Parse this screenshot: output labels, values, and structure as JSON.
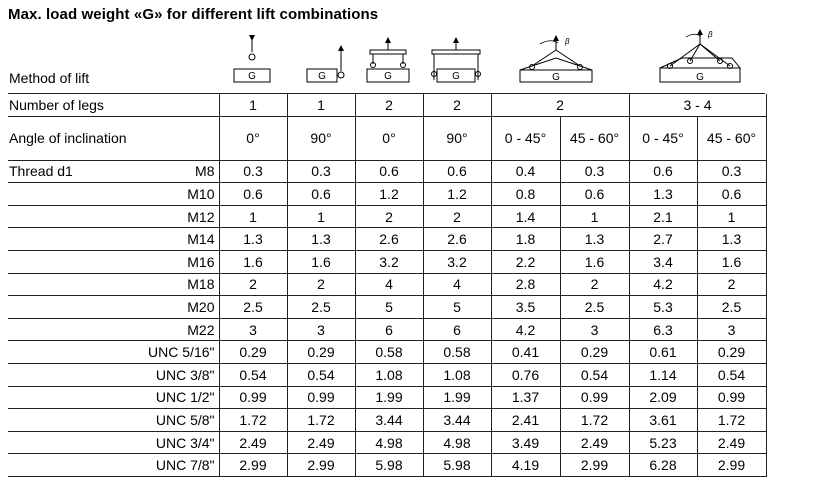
{
  "title": "Max. load weight «G» for different lift combinations",
  "method_of_lift_label": "Method of lift",
  "number_of_legs_label": "Number of legs",
  "angle_label": "Angle of inclination",
  "thread_label": "Thread d1",
  "diagram_letter": "G",
  "angle_symbol": "β",
  "legs": [
    "1",
    "1",
    "2",
    "2",
    "2",
    "3 - 4"
  ],
  "angles": [
    "0°",
    "90°",
    "0°",
    "90°",
    "0 - 45°",
    "45 - 60°",
    "0 - 45°",
    "45 - 60°"
  ],
  "rows": [
    {
      "thread": "M8",
      "values": [
        "0.3",
        "0.3",
        "0.6",
        "0.6",
        "0.4",
        "0.3",
        "0.6",
        "0.3"
      ]
    },
    {
      "thread": "M10",
      "values": [
        "0.6",
        "0.6",
        "1.2",
        "1.2",
        "0.8",
        "0.6",
        "1.3",
        "0.6"
      ]
    },
    {
      "thread": "M12",
      "values": [
        "1",
        "1",
        "2",
        "2",
        "1.4",
        "1",
        "2.1",
        "1"
      ]
    },
    {
      "thread": "M14",
      "values": [
        "1.3",
        "1.3",
        "2.6",
        "2.6",
        "1.8",
        "1.3",
        "2.7",
        "1.3"
      ]
    },
    {
      "thread": "M16",
      "values": [
        "1.6",
        "1.6",
        "3.2",
        "3.2",
        "2.2",
        "1.6",
        "3.4",
        "1.6"
      ]
    },
    {
      "thread": "M18",
      "values": [
        "2",
        "2",
        "4",
        "4",
        "2.8",
        "2",
        "4.2",
        "2"
      ]
    },
    {
      "thread": "M20",
      "values": [
        "2.5",
        "2.5",
        "5",
        "5",
        "3.5",
        "2.5",
        "5.3",
        "2.5"
      ]
    },
    {
      "thread": "M22",
      "values": [
        "3",
        "3",
        "6",
        "6",
        "4.2",
        "3",
        "6.3",
        "3"
      ]
    },
    {
      "thread": "UNC 5/16\"",
      "values": [
        "0.29",
        "0.29",
        "0.58",
        "0.58",
        "0.41",
        "0.29",
        "0.61",
        "0.29"
      ]
    },
    {
      "thread": "UNC 3/8\"",
      "values": [
        "0.54",
        "0.54",
        "1.08",
        "1.08",
        "0.76",
        "0.54",
        "1.14",
        "0.54"
      ]
    },
    {
      "thread": "UNC 1/2\"",
      "values": [
        "0.99",
        "0.99",
        "1.99",
        "1.99",
        "1.37",
        "0.99",
        "2.09",
        "0.99"
      ]
    },
    {
      "thread": "UNC 5/8\"",
      "values": [
        "1.72",
        "1.72",
        "3.44",
        "3.44",
        "2.41",
        "1.72",
        "3.61",
        "1.72"
      ]
    },
    {
      "thread": "UNC 3/4\"",
      "values": [
        "2.49",
        "2.49",
        "4.98",
        "4.98",
        "3.49",
        "2.49",
        "5.23",
        "2.49"
      ]
    },
    {
      "thread": "UNC 7/8\"",
      "values": [
        "2.99",
        "2.99",
        "5.98",
        "5.98",
        "4.19",
        "2.99",
        "6.28",
        "2.99"
      ]
    }
  ]
}
